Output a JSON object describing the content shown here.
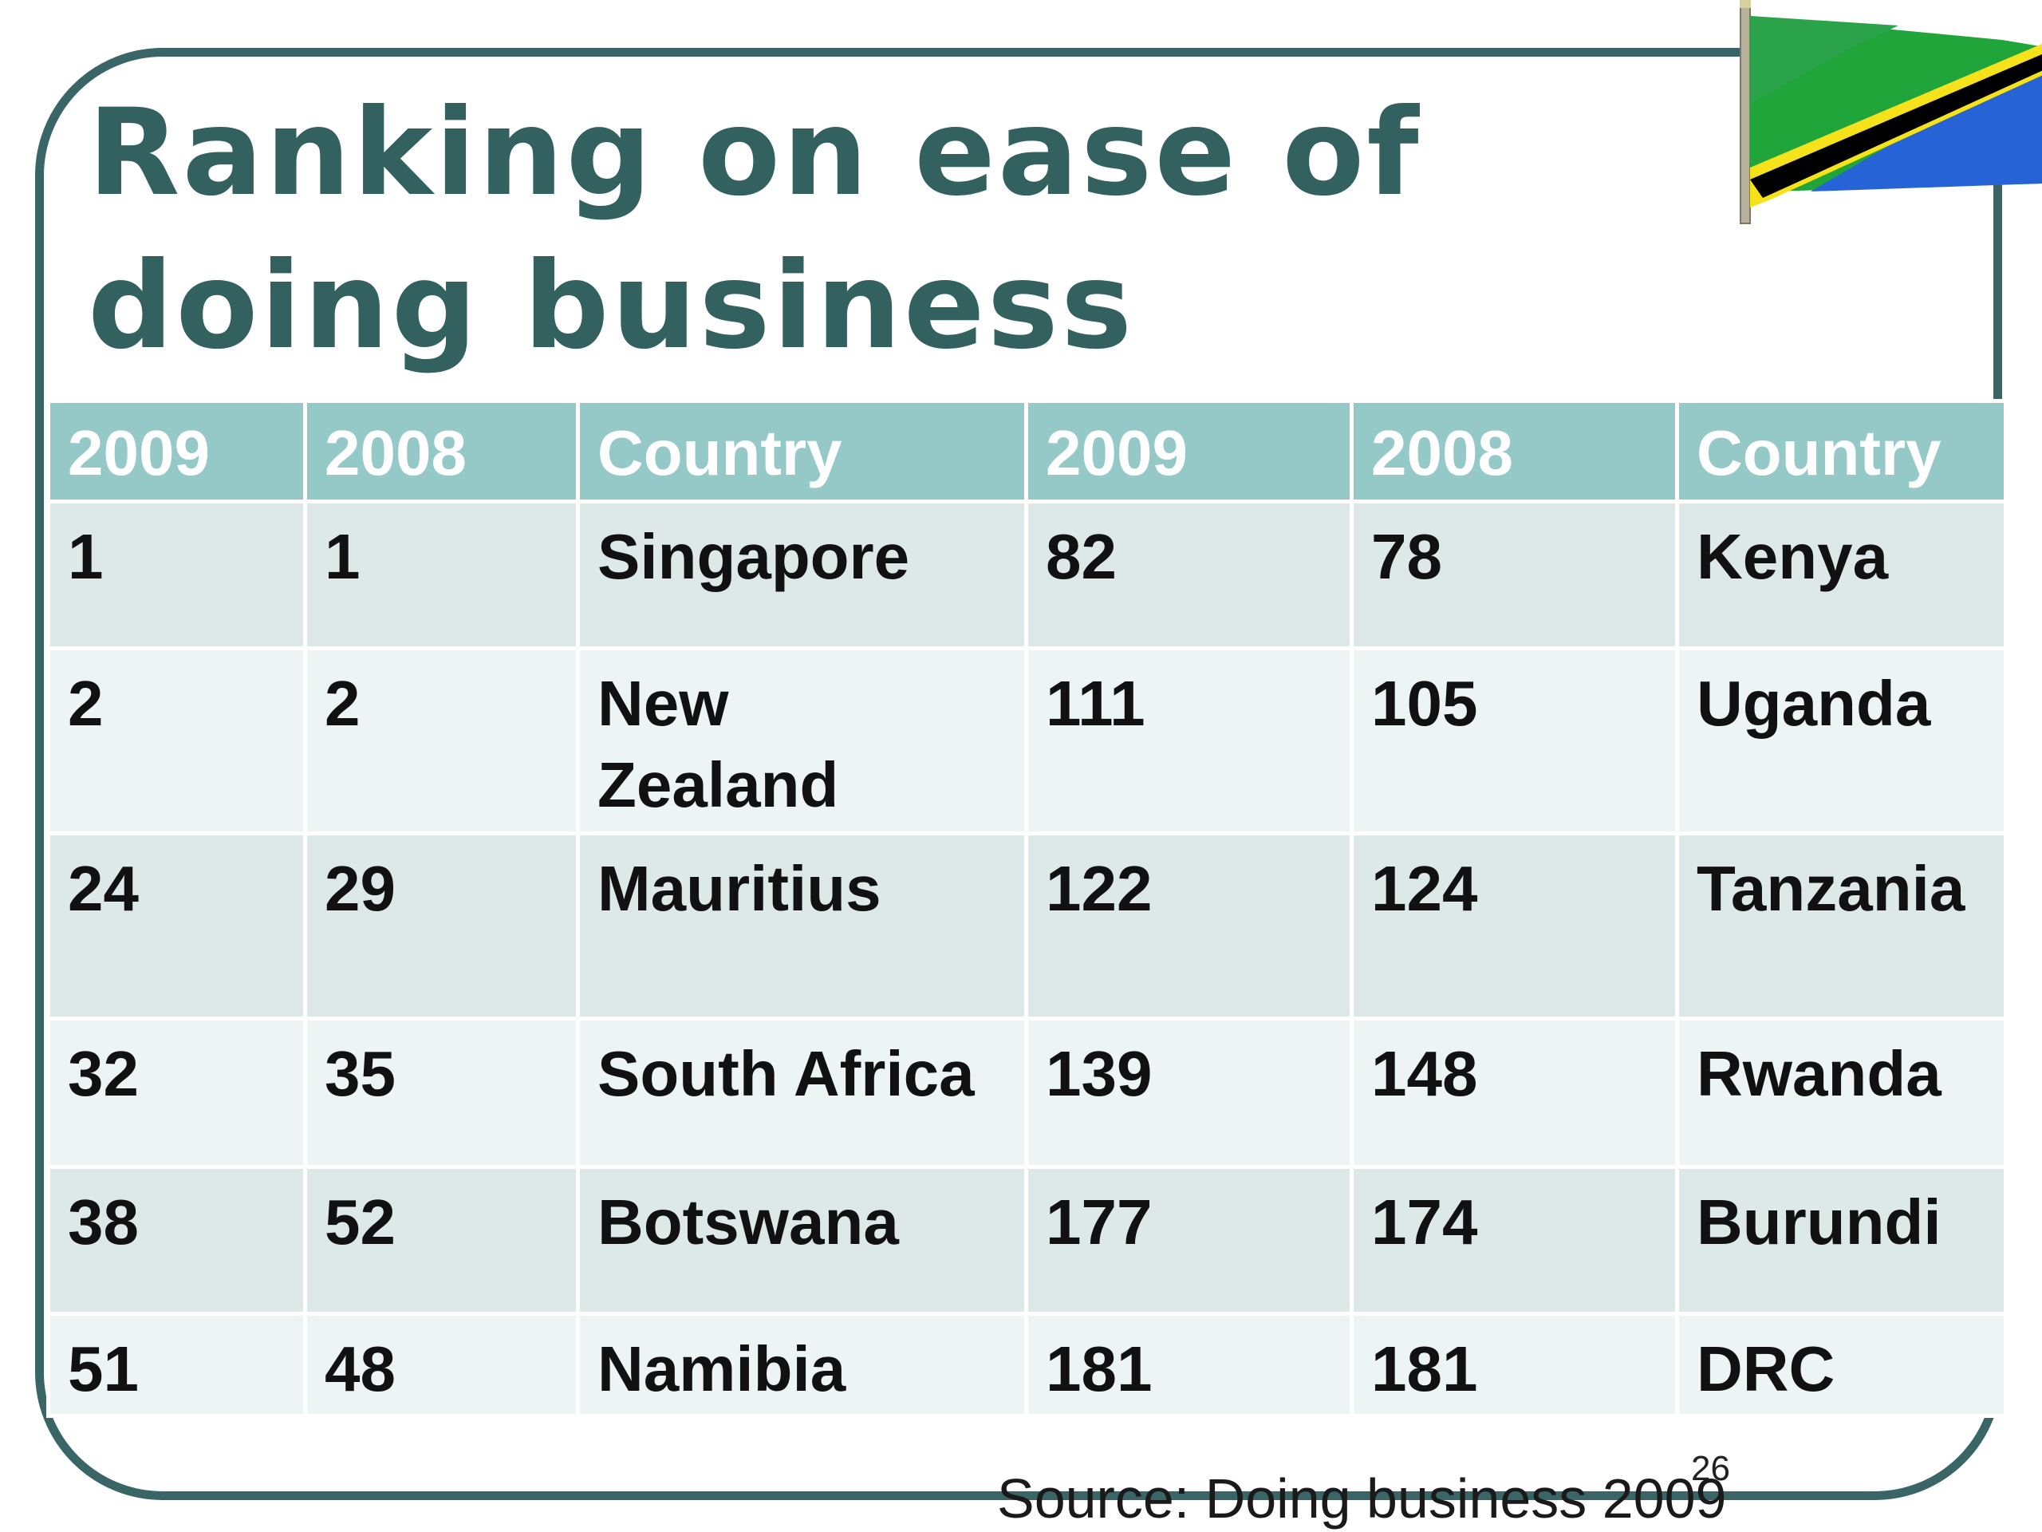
{
  "slide": {
    "title": "Ranking on ease of doing business",
    "page_number": "26",
    "source": "Source: Doing business 2009"
  },
  "flag": {
    "icon": "tanzania-flag-icon",
    "colors": {
      "green": "#1fa539",
      "yellow": "#f5e21a",
      "black": "#000000",
      "blue": "#2563d6"
    }
  },
  "table": {
    "headers": [
      "2009",
      "2008",
      "Country",
      "2009",
      "2008",
      "Country"
    ],
    "rows": [
      [
        "1",
        "1",
        "Singapore",
        "82",
        "78",
        "Kenya"
      ],
      [
        "2",
        "2",
        "New Zealand",
        "111",
        "105",
        "Uganda"
      ],
      [
        "24",
        "29",
        "Mauritius",
        "122",
        "124",
        "Tanzania"
      ],
      [
        "32",
        "35",
        "South Africa",
        "139",
        "148",
        "Rwanda"
      ],
      [
        "38",
        "52",
        "Botswana",
        "177",
        "174",
        "Burundi"
      ],
      [
        "51",
        "48",
        "Namibia",
        "181",
        "181",
        "DRC"
      ]
    ]
  },
  "colors": {
    "title": "#33615f",
    "frame": "#3a6566",
    "header_bg": "#95c9c8",
    "row_odd_bg": "#dde9e9",
    "row_even_bg": "#edf4f4"
  }
}
